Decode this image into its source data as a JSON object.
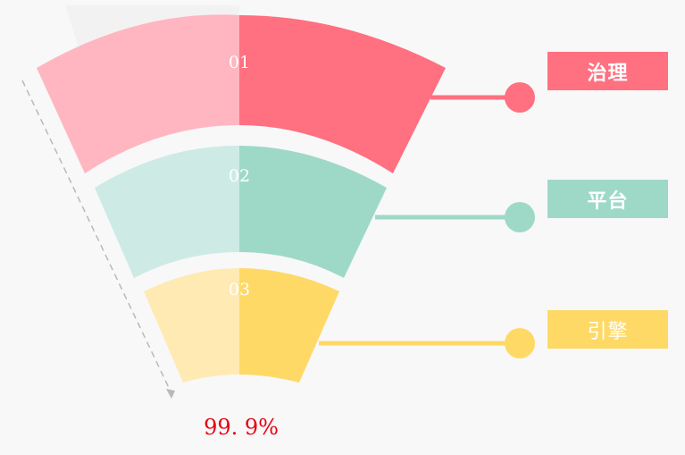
{
  "layers": [
    {
      "number": "01",
      "label": "治理",
      "color": "#ff7080",
      "light_color": "#ffb6c0"
    },
    {
      "number": "02",
      "label": "平台",
      "color": "#9ed9c7",
      "light_color": "#cdebe4"
    },
    {
      "number": "03",
      "label": "引擎",
      "color": "#ffd966",
      "light_color": "#ffeab3"
    }
  ],
  "value_text": "99. 9%",
  "value_color": "#e60012"
}
